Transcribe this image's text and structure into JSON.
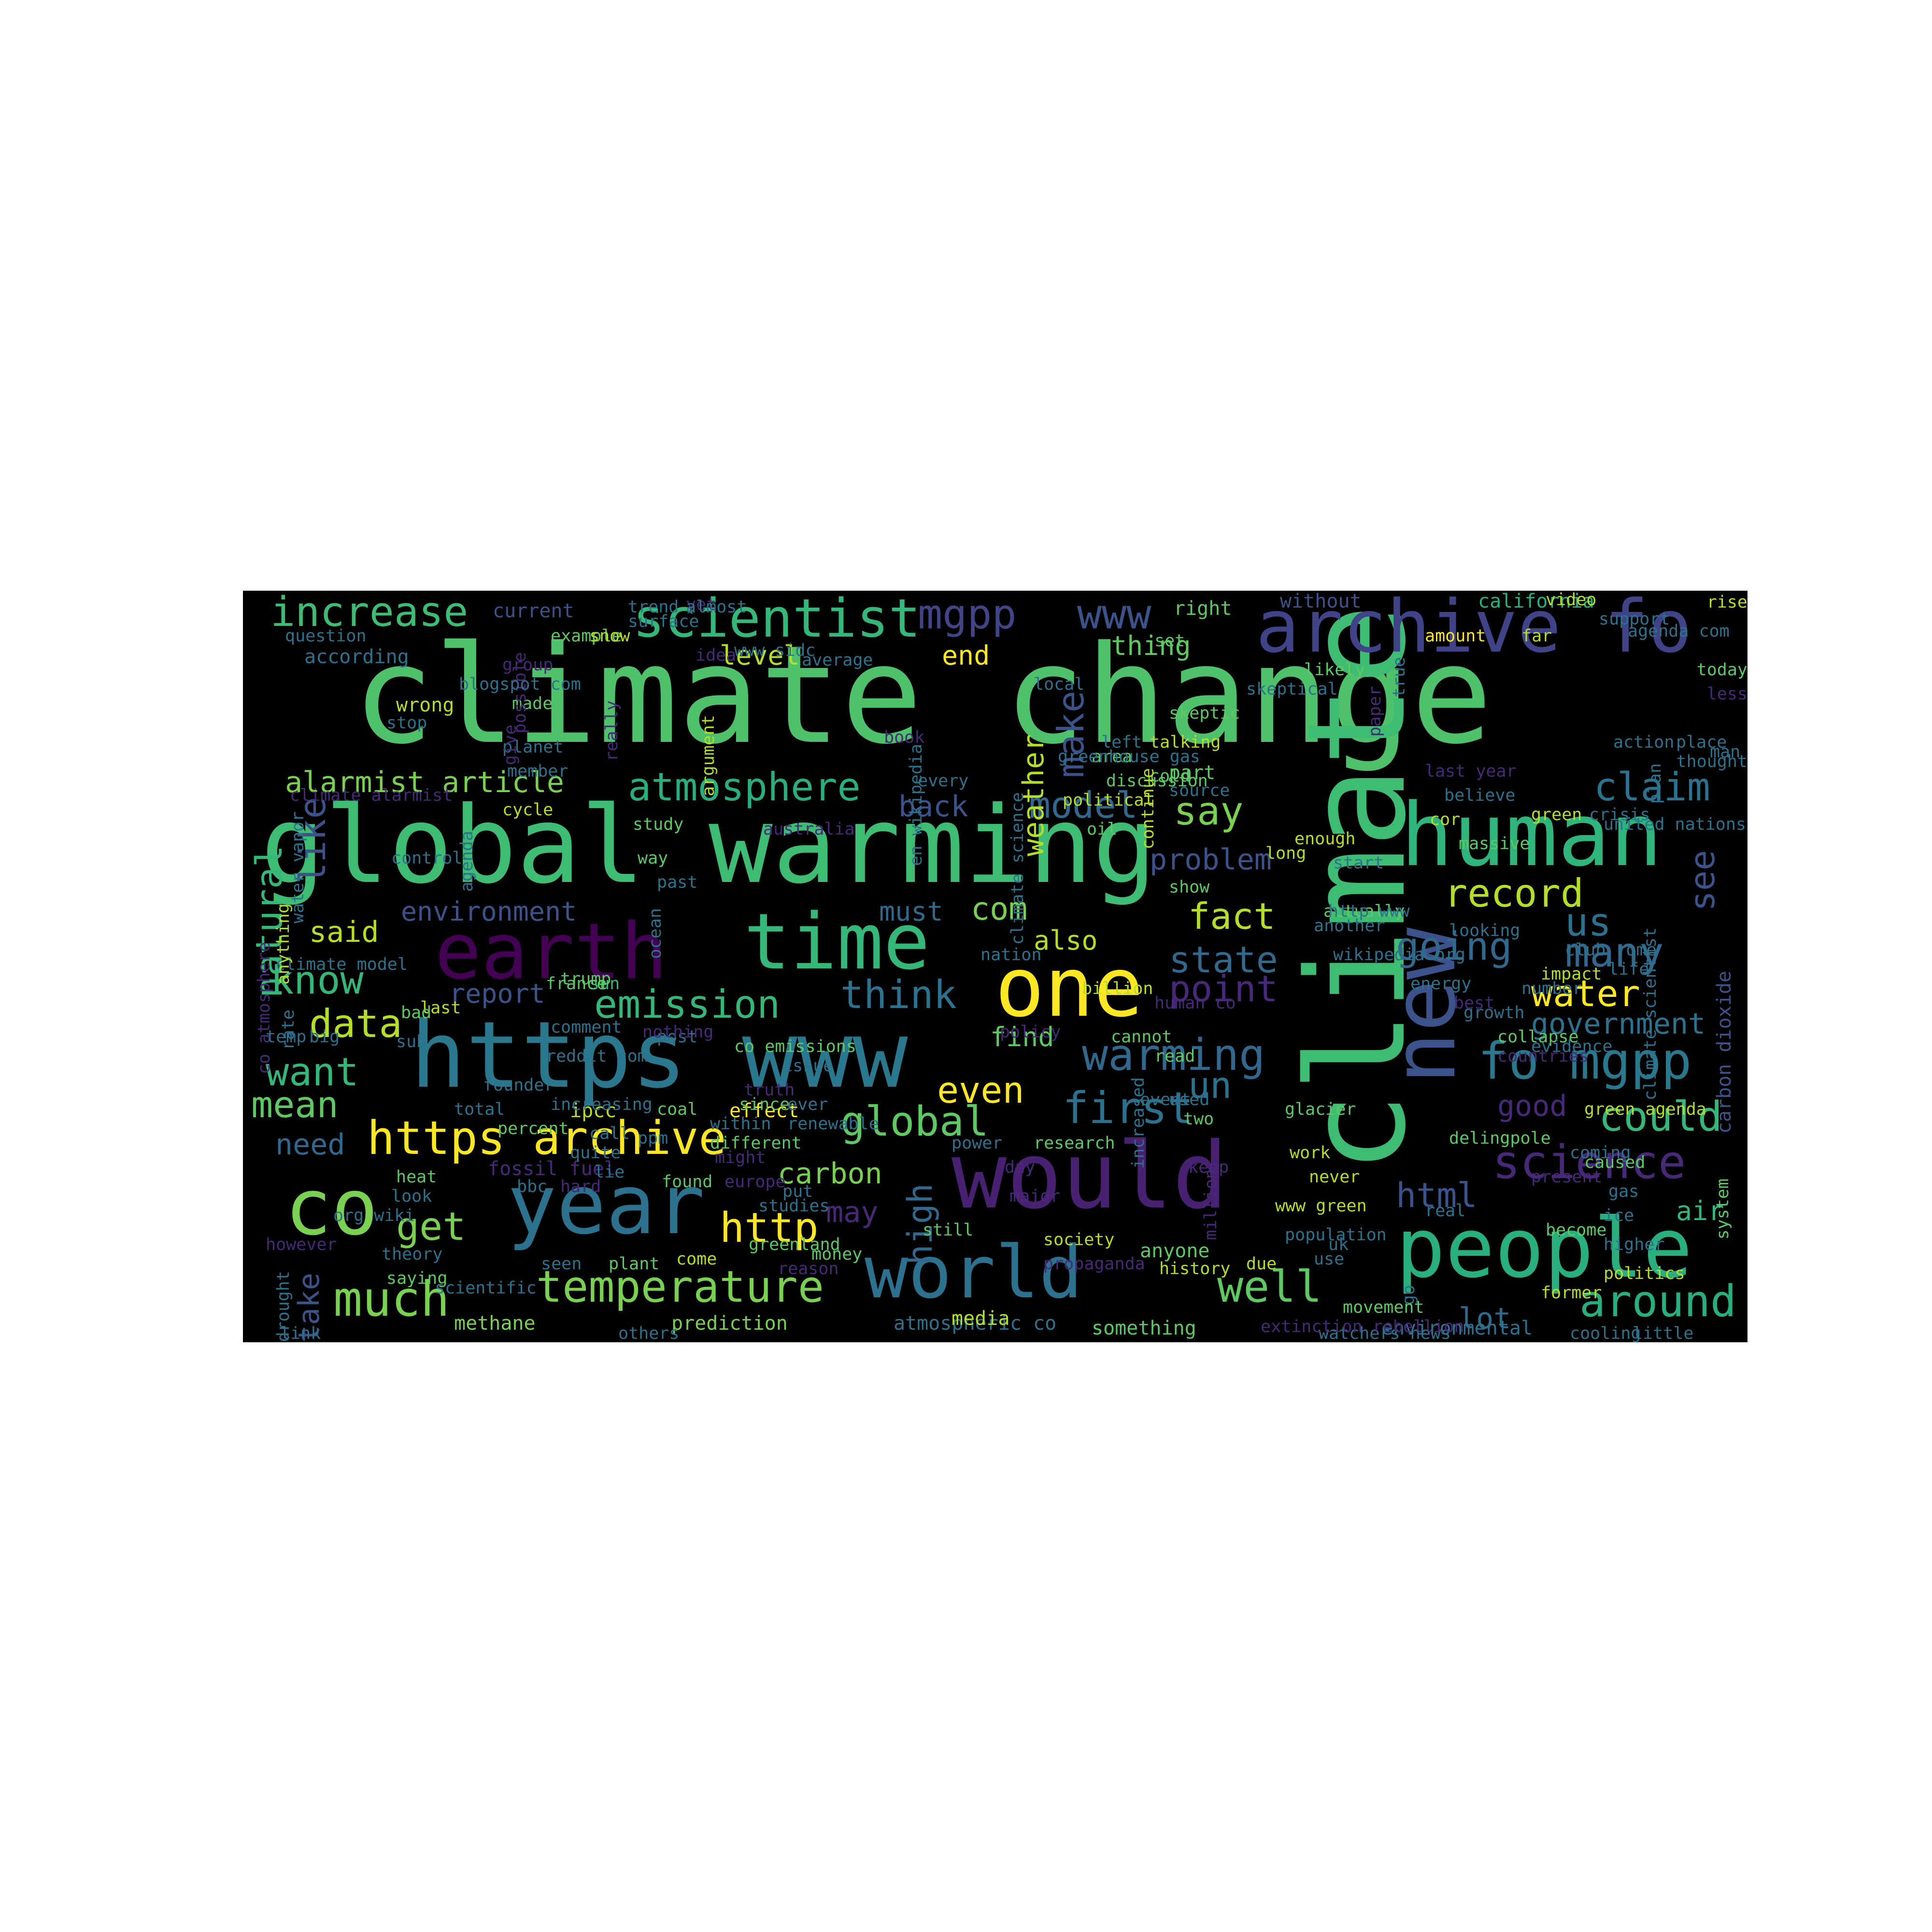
{
  "words": [
    {
      "text": "climate change",
      "color": "#4fc16b"
    },
    {
      "text": "global warming",
      "color": "#3fbc73"
    },
    {
      "text": "climate",
      "color": "#3fbc73"
    },
    {
      "text": "new",
      "color": "#3b528b"
    },
    {
      "text": "archive fo",
      "color": "#404387"
    },
    {
      "text": "human",
      "color": "#2fb47c"
    },
    {
      "text": "https www",
      "color": "#2a788e"
    },
    {
      "text": "earth",
      "color": "#440154"
    },
    {
      "text": "time",
      "color": "#35b779"
    },
    {
      "text": "one",
      "color": "#fde725"
    },
    {
      "text": "would",
      "color": "#482173"
    },
    {
      "text": "year",
      "color": "#2c728e"
    },
    {
      "text": "co",
      "color": "#7ad151"
    },
    {
      "text": "world",
      "color": "#2c728e"
    },
    {
      "text": "people",
      "color": "#29af7f"
    },
    {
      "text": "https archive",
      "color": "#fde725"
    },
    {
      "text": "scientist",
      "color": "#35b779"
    },
    {
      "text": "increase",
      "color": "#3fbc73"
    },
    {
      "text": "mgpp",
      "color": "#414487"
    },
    {
      "text": "www",
      "color": "#3b528b"
    },
    {
      "text": "temperature",
      "color": "#7ad151"
    },
    {
      "text": "much",
      "color": "#7ad151"
    },
    {
      "text": "science",
      "color": "#482878"
    },
    {
      "text": "fo mgpp",
      "color": "#2a788e"
    },
    {
      "text": "atmosphere",
      "color": "#29af7f"
    },
    {
      "text": "http",
      "color": "#fde725"
    },
    {
      "text": "warming",
      "color": "#31688e"
    },
    {
      "text": "emission",
      "color": "#35b779"
    },
    {
      "text": "record",
      "color": "#b5de2b"
    },
    {
      "text": "going",
      "color": "#31688e"
    },
    {
      "text": "many",
      "color": "#31688e"
    },
    {
      "text": "know",
      "color": "#35b779"
    },
    {
      "text": "alarmist article",
      "color": "#7ad151"
    },
    {
      "text": "natural",
      "color": "#35b779"
    },
    {
      "text": "like",
      "color": "#3b528b"
    },
    {
      "text": "claim",
      "color": "#2c728e"
    },
    {
      "text": "around",
      "color": "#29af7f"
    },
    {
      "text": "could",
      "color": "#35b779"
    },
    {
      "text": "well",
      "color": "#5ec962"
    },
    {
      "text": "get",
      "color": "#7ad151"
    },
    {
      "text": "global",
      "color": "#5ec962"
    },
    {
      "text": "even",
      "color": "#fde725"
    },
    {
      "text": "fact",
      "color": "#b5de2b"
    },
    {
      "text": "state",
      "color": "#31688e"
    },
    {
      "text": "water",
      "color": "#fde725"
    },
    {
      "text": "say",
      "color": "#7ad151"
    },
    {
      "text": "model",
      "color": "#31688e"
    },
    {
      "text": "make",
      "color": "#3b528b"
    },
    {
      "text": "us",
      "color": "#2c728e"
    },
    {
      "text": "see",
      "color": "#3b528b"
    },
    {
      "text": "data",
      "color": "#b5de2b"
    },
    {
      "text": "want",
      "color": "#35b779"
    },
    {
      "text": "mean",
      "color": "#5ec962"
    },
    {
      "text": "think",
      "color": "#2c728e"
    },
    {
      "text": "first",
      "color": "#2c728e"
    },
    {
      "text": "un",
      "color": "#2c728e"
    },
    {
      "text": "point",
      "color": "#482878"
    },
    {
      "text": "html",
      "color": "#3b528b"
    },
    {
      "text": "carbon",
      "color": "#7ad151"
    },
    {
      "text": "high",
      "color": "#31688e"
    },
    {
      "text": "weather",
      "color": "#b5de2b"
    },
    {
      "text": "level",
      "color": "#b5de2b"
    },
    {
      "text": "government",
      "color": "#2c728e"
    },
    {
      "text": "good",
      "color": "#482878"
    },
    {
      "text": "com",
      "color": "#7ad151"
    },
    {
      "text": "back",
      "color": "#3b528b"
    },
    {
      "text": "problem",
      "color": "#3b528b"
    },
    {
      "text": "said",
      "color": "#b5de2b"
    },
    {
      "text": "take",
      "color": "#3b528b"
    },
    {
      "text": "need",
      "color": "#31688e"
    },
    {
      "text": "report",
      "color": "#3b528b"
    },
    {
      "text": "environment",
      "color": "#3b528b"
    },
    {
      "text": "air",
      "color": "#35b779"
    },
    {
      "text": "carbon dioxide",
      "color": "#3b528b"
    },
    {
      "text": "may",
      "color": "#482878"
    },
    {
      "text": "end",
      "color": "#fde725"
    },
    {
      "text": "thing",
      "color": "#5ec962"
    },
    {
      "text": "also",
      "color": "#b5de2b"
    },
    {
      "text": "must",
      "color": "#31688e"
    },
    {
      "text": "find",
      "color": "#5ec962"
    },
    {
      "text": "lot",
      "color": "#31688e"
    },
    {
      "text": "right",
      "color": "#5ec962"
    },
    {
      "text": "current",
      "color": "#3b528b"
    },
    {
      "text": "without",
      "color": "#3b528b"
    },
    {
      "text": "california",
      "color": "#29af7f"
    },
    {
      "text": "question",
      "color": "#2c728e"
    },
    {
      "text": "according",
      "color": "#2c728e"
    },
    {
      "text": "wrong",
      "color": "#b5de2b"
    },
    {
      "text": "stop",
      "color": "#2c728e"
    },
    {
      "text": "cycle",
      "color": "#b5de2b"
    },
    {
      "text": "control",
      "color": "#2c728e"
    },
    {
      "text": "study",
      "color": "#5ec962"
    },
    {
      "text": "way",
      "color": "#5ec962"
    },
    {
      "text": "past",
      "color": "#2c728e"
    },
    {
      "text": "ocean",
      "color": "#2c728e"
    },
    {
      "text": "sun",
      "color": "#35b779"
    },
    {
      "text": "effect",
      "color": "#fde725"
    },
    {
      "text": "ipcc",
      "color": "#b5de2b"
    },
    {
      "text": "fossil fuel",
      "color": "#482878"
    },
    {
      "text": "heat",
      "color": "#5ec962"
    },
    {
      "text": "look",
      "color": "#2c728e"
    },
    {
      "text": "theory",
      "color": "#2c728e"
    },
    {
      "text": "scientific",
      "color": "#2c728e"
    },
    {
      "text": "seen",
      "color": "#2c728e"
    },
    {
      "text": "plant",
      "color": "#5ec962"
    },
    {
      "text": "come",
      "color": "#b5de2b"
    },
    {
      "text": "methane",
      "color": "#7ad151"
    },
    {
      "text": "prediction",
      "color": "#7ad151"
    },
    {
      "text": "atmospheric co",
      "color": "#2c728e"
    },
    {
      "text": "media",
      "color": "#b5de2b"
    },
    {
      "text": "something",
      "color": "#5ec962"
    },
    {
      "text": "environmental",
      "color": "#2c728e"
    },
    {
      "text": "still",
      "color": "#5ec962"
    },
    {
      "text": "anyone",
      "color": "#5ec962"
    },
    {
      "text": "population",
      "color": "#2c728e"
    },
    {
      "text": "history",
      "color": "#b5de2b"
    },
    {
      "text": "use",
      "color": "#2c728e"
    },
    {
      "text": "part",
      "color": "#5ec962"
    },
    {
      "text": "source",
      "color": "#2c728e"
    },
    {
      "text": "believe",
      "color": "#2c728e"
    },
    {
      "text": "show",
      "color": "#5ec962"
    },
    {
      "text": "actually",
      "color": "#5ec962"
    },
    {
      "text": "another",
      "color": "#2c728e"
    },
    {
      "text": "looking",
      "color": "#2c728e"
    },
    {
      "text": "place",
      "color": "#2c728e"
    },
    {
      "text": "today",
      "color": "#5ec962"
    },
    {
      "text": "far",
      "color": "#b5de2b"
    },
    {
      "text": "likely",
      "color": "#5ec962"
    },
    {
      "text": "set",
      "color": "#5ec962"
    },
    {
      "text": "skeptic",
      "color": "#5ec962"
    },
    {
      "text": "every",
      "color": "#2c728e"
    },
    {
      "text": "nation",
      "color": "#2c728e"
    },
    {
      "text": "policy",
      "color": "#482878"
    },
    {
      "text": "truth",
      "color": "#482878"
    },
    {
      "text": "since",
      "color": "#5ec962"
    },
    {
      "text": "ever",
      "color": "#2c728e"
    },
    {
      "text": "power",
      "color": "#2c728e"
    },
    {
      "text": "research",
      "color": "#5ec962"
    },
    {
      "text": "day",
      "color": "#482878"
    },
    {
      "text": "keep",
      "color": "#482878"
    },
    {
      "text": "used",
      "color": "#2c728e"
    },
    {
      "text": "two",
      "color": "#5ec962"
    },
    {
      "text": "glacier",
      "color": "#5ec962"
    },
    {
      "text": "work",
      "color": "#b5de2b"
    },
    {
      "text": "never",
      "color": "#b5de2b"
    },
    {
      "text": "real",
      "color": "#2c728e"
    },
    {
      "text": "http www",
      "color": "#2c728e"
    },
    {
      "text": "energy",
      "color": "#2c728e"
    },
    {
      "text": "growth",
      "color": "#2c728e"
    },
    {
      "text": "go",
      "color": "#2c728e"
    },
    {
      "text": "yet",
      "color": "#482878"
    },
    {
      "text": "surface",
      "color": "#2c728e"
    },
    {
      "text": "made",
      "color": "#5ec962"
    },
    {
      "text": "planet",
      "color": "#2c728e"
    },
    {
      "text": "member",
      "color": "#2c728e"
    },
    {
      "text": "give",
      "color": "#482878"
    },
    {
      "text": "possible",
      "color": "#482878"
    },
    {
      "text": "really",
      "color": "#482878"
    },
    {
      "text": "argument",
      "color": "#b5de2b"
    },
    {
      "text": "average",
      "color": "#2c728e"
    },
    {
      "text": "paper",
      "color": "#482878"
    },
    {
      "text": "discussion",
      "color": "#5ec962"
    },
    {
      "text": "cold",
      "color": "#5ec962"
    },
    {
      "text": "area",
      "color": "#5ec962"
    },
    {
      "text": "continue",
      "color": "#b5de2b"
    },
    {
      "text": "book",
      "color": "#482878"
    },
    {
      "text": "left",
      "color": "#2c728e"
    },
    {
      "text": "climate science",
      "color": "#2c728e"
    },
    {
      "text": "local",
      "color": "#2c728e"
    },
    {
      "text": "en wikipedia",
      "color": "#2c728e"
    },
    {
      "text": "last year",
      "color": "#482878"
    },
    {
      "text": "wikipedia org",
      "color": "#2c728e"
    },
    {
      "text": "human co",
      "color": "#482878"
    },
    {
      "text": "climate model",
      "color": "#2c728e"
    },
    {
      "text": "co atmosphere",
      "color": "#482878"
    },
    {
      "text": "greenhouse gas",
      "color": "#2c728e"
    },
    {
      "text": "australia",
      "color": "#482878"
    },
    {
      "text": "last",
      "color": "#b5de2b"
    },
    {
      "text": "bad",
      "color": "#5ec962"
    },
    {
      "text": "sub",
      "color": "#2c728e"
    },
    {
      "text": "co emissions",
      "color": "#5ec962"
    },
    {
      "text": "read",
      "color": "#5ec962"
    },
    {
      "text": "however",
      "color": "#482878"
    },
    {
      "text": "drought",
      "color": "#2c728e"
    },
    {
      "text": "million",
      "color": "#482878"
    },
    {
      "text": "saying",
      "color": "#5ec962"
    },
    {
      "text": "org wiki",
      "color": "#2c728e"
    },
    {
      "text": "post",
      "color": "#2c728e"
    },
    {
      "text": "reason",
      "color": "#482878"
    },
    {
      "text": "due",
      "color": "#b5de2b"
    },
    {
      "text": "uk",
      "color": "#2c728e"
    },
    {
      "text": "system",
      "color": "#5ec962"
    },
    {
      "text": "become",
      "color": "#5ec962"
    },
    {
      "text": "present",
      "color": "#482878"
    },
    {
      "text": "trend",
      "color": "#2c728e"
    },
    {
      "text": "almost",
      "color": "#2c728e"
    },
    {
      "text": "video",
      "color": "#b5de2b"
    },
    {
      "text": "rise",
      "color": "#b5de2b"
    },
    {
      "text": "support",
      "color": "#2c728e"
    },
    {
      "text": "agenda com",
      "color": "#2c728e"
    },
    {
      "text": "less",
      "color": "#482878"
    },
    {
      "text": "man",
      "color": "#2c728e"
    },
    {
      "text": "thought",
      "color": "#2c728e"
    },
    {
      "text": "action",
      "color": "#2c728e"
    },
    {
      "text": "plan",
      "color": "#2c728e"
    },
    {
      "text": "crisis",
      "color": "#2c728e"
    },
    {
      "text": "united nations",
      "color": "#2c728e"
    },
    {
      "text": "massive",
      "color": "#5ec962"
    },
    {
      "text": "cor",
      "color": "#b5de2b"
    },
    {
      "text": "start",
      "color": "#2c728e"
    },
    {
      "text": "green",
      "color": "#b5de2b"
    },
    {
      "text": "long",
      "color": "#b5de2b"
    },
    {
      "text": "amount",
      "color": "#fde725"
    },
    {
      "text": "skeptical",
      "color": "#2c728e"
    },
    {
      "text": "true",
      "color": "#2c728e"
    },
    {
      "text": "political",
      "color": "#b5de2b"
    },
    {
      "text": "talking",
      "color": "#b5de2b"
    },
    {
      "text": "oil",
      "color": "#5ec962"
    },
    {
      "text": "enough",
      "color": "#b5de2b"
    },
    {
      "text": "example",
      "color": "#5ec962"
    },
    {
      "text": "blogspot com",
      "color": "#2c728e"
    },
    {
      "text": "group",
      "color": "#482878"
    },
    {
      "text": "water vapor",
      "color": "#2c728e"
    },
    {
      "text": "agenda",
      "color": "#2c728e"
    },
    {
      "text": "anything",
      "color": "#b5de2b"
    },
    {
      "text": "rate",
      "color": "#2c728e"
    },
    {
      "text": "temp",
      "color": "#2c728e"
    },
    {
      "text": "big",
      "color": "#2c728e"
    },
    {
      "text": "link",
      "color": "#2c728e"
    },
    {
      "text": "others",
      "color": "#2c728e"
    },
    {
      "text": "watchers news",
      "color": "#2c728e"
    },
    {
      "text": "cooling",
      "color": "#2c728e"
    },
    {
      "text": "little",
      "color": "#2c728e"
    },
    {
      "text": "former",
      "color": "#b5de2b"
    },
    {
      "text": "extinction rebellion",
      "color": "#482878"
    },
    {
      "text": "www green",
      "color": "#b5de2b"
    },
    {
      "text": "movement",
      "color": "#5ec962"
    },
    {
      "text": "greenland",
      "color": "#5ec962"
    },
    {
      "text": "money",
      "color": "#5ec962"
    },
    {
      "text": "studies",
      "color": "#2c728e"
    },
    {
      "text": "society",
      "color": "#b5de2b"
    },
    {
      "text": "propaganda",
      "color": "#482878"
    },
    {
      "text": "major",
      "color": "#482878"
    },
    {
      "text": "gas",
      "color": "#2c728e"
    },
    {
      "text": "ice",
      "color": "#2c728e"
    },
    {
      "text": "higher",
      "color": "#2c728e"
    },
    {
      "text": "politics",
      "color": "#b5de2b"
    },
    {
      "text": "coming",
      "color": "#2c728e"
    },
    {
      "text": "caused",
      "color": "#5ec962"
    },
    {
      "text": "green agenda",
      "color": "#b5de2b"
    },
    {
      "text": "delingpole",
      "color": "#5ec962"
    },
    {
      "text": "collapse",
      "color": "#5ec962"
    },
    {
      "text": "best",
      "color": "#482878"
    },
    {
      "text": "countries",
      "color": "#482878"
    },
    {
      "text": "evidence",
      "color": "#2c728e"
    },
    {
      "text": "impact",
      "color": "#b5de2b"
    },
    {
      "text": "life",
      "color": "#2c728e"
    },
    {
      "text": "club rome",
      "color": "#2c728e"
    },
    {
      "text": "climate scientist",
      "color": "#2c728e"
    },
    {
      "text": "number",
      "color": "#2c728e"
    },
    {
      "text": "billion",
      "color": "#b5de2b"
    },
    {
      "text": "cannot",
      "color": "#5ec962"
    },
    {
      "text": "event",
      "color": "#2c728e"
    },
    {
      "text": "increased",
      "color": "#2c728e"
    },
    {
      "text": "nothing",
      "color": "#482878"
    },
    {
      "text": "comment",
      "color": "#2c728e"
    },
    {
      "text": "reddit com",
      "color": "#2c728e"
    },
    {
      "text": "increasing",
      "color": "#2c728e"
    },
    {
      "text": "within",
      "color": "#2c728e"
    },
    {
      "text": "different",
      "color": "#5ec962"
    },
    {
      "text": "coal",
      "color": "#5ec962"
    },
    {
      "text": "trump",
      "color": "#5ec962"
    },
    {
      "text": "france",
      "color": "#5ec962"
    },
    {
      "text": "issue",
      "color": "#2c728e"
    },
    {
      "text": "renewable",
      "color": "#2c728e"
    },
    {
      "text": "founder",
      "color": "#2c728e"
    },
    {
      "text": "total",
      "color": "#2c728e"
    },
    {
      "text": "percent",
      "color": "#5ec962"
    },
    {
      "text": "call",
      "color": "#2c728e"
    },
    {
      "text": "quite",
      "color": "#2c728e"
    },
    {
      "text": "lie",
      "color": "#2c728e"
    },
    {
      "text": "bbc",
      "color": "#2c728e"
    },
    {
      "text": "hard",
      "color": "#482878"
    },
    {
      "text": "found",
      "color": "#5ec962"
    },
    {
      "text": "might",
      "color": "#482878"
    },
    {
      "text": "ppm",
      "color": "#2c728e"
    },
    {
      "text": "europe",
      "color": "#482878"
    },
    {
      "text": "put",
      "color": "#2c728e"
    },
    {
      "text": "idea",
      "color": "#482878"
    },
    {
      "text": "www sidc",
      "color": "#2c728e"
    },
    {
      "text": "snow",
      "color": "#b5de2b"
    },
    {
      "text": "climate alarmist",
      "color": "#482878"
    }
  ]
}
